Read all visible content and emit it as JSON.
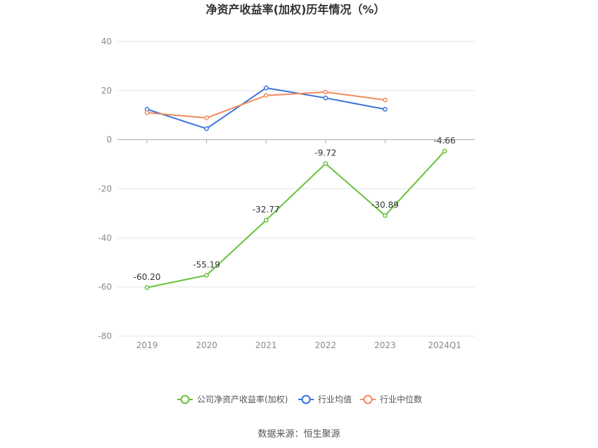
{
  "chart_data": {
    "type": "line",
    "title": "净资产收益率(加权)历年情况（%）",
    "categories": [
      "2019",
      "2020",
      "2021",
      "2022",
      "2023",
      "2024Q1"
    ],
    "ylim": [
      -80,
      40
    ],
    "yticks": [
      40,
      20,
      0,
      -20,
      -40,
      -60,
      -80
    ],
    "grid": true,
    "legend_position": "bottom",
    "series": [
      {
        "name": "公司净资产收益率(加权)",
        "color": "#67c23a",
        "values": [
          -60.2,
          -55.19,
          -32.77,
          -9.72,
          -30.89,
          -4.66
        ],
        "labels": [
          "-60.20",
          "-55.19",
          "-32.77",
          "-9.72",
          "-30.89",
          "-4.66"
        ]
      },
      {
        "name": "行业均值",
        "color": "#3b73db",
        "values": [
          12.4,
          4.5,
          21.1,
          17.0,
          12.4,
          null
        ]
      },
      {
        "name": "行业中位数",
        "color": "#f28a5c",
        "values": [
          11.0,
          8.9,
          18.0,
          19.4,
          16.2,
          null
        ]
      }
    ]
  },
  "source": "数据来源：恒生聚源"
}
